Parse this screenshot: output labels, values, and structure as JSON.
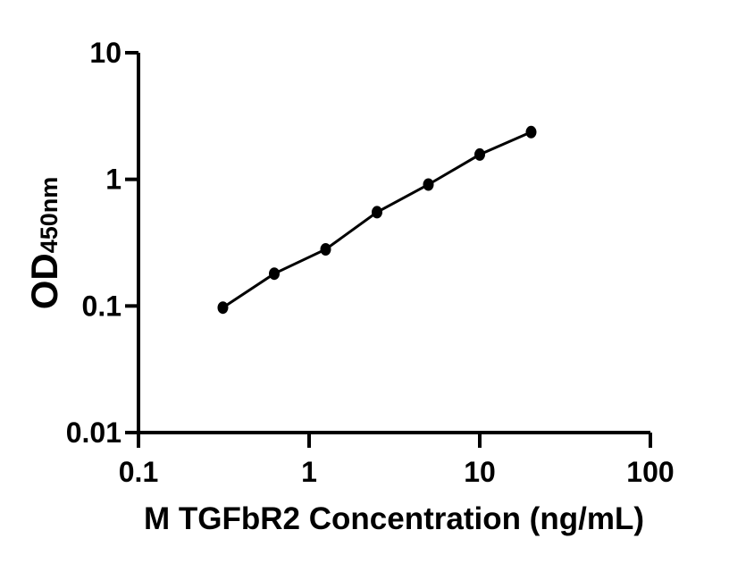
{
  "figure": {
    "background_color": "#ffffff",
    "axis_color": "#000000"
  },
  "chart_data": {
    "type": "line",
    "title": "",
    "x": [
      0.3125,
      0.625,
      1.25,
      2.5,
      5,
      10,
      20
    ],
    "y": [
      0.097,
      0.18,
      0.28,
      0.55,
      0.91,
      1.57,
      2.36
    ],
    "xlabel": "M TGFbR2 Concentration (ng/mL)",
    "ylabel_main": "OD",
    "ylabel_sub": "450nm",
    "x_scale": "log",
    "y_scale": "log",
    "xlim": [
      0.1,
      100
    ],
    "ylim": [
      0.01,
      10
    ],
    "x_tick_labels": [
      "0.1",
      "1",
      "10",
      "100"
    ],
    "y_tick_labels": [
      "10",
      "1",
      "0.1",
      "0.01"
    ],
    "grid": false,
    "legend": false,
    "line_color": "#000000",
    "marker_color": "#000000",
    "marker_shape": "filled-circle"
  }
}
